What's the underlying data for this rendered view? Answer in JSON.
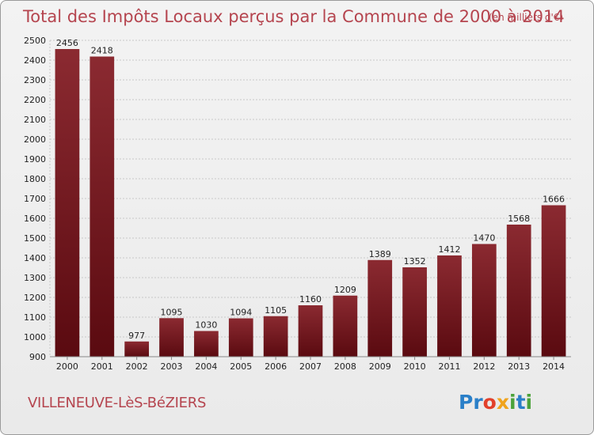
{
  "page": {
    "title": "Total des Impôts Locaux perçus par la Commune de 2000 à 2014",
    "unit": "(en milliers d'€)",
    "commune": "VILLENEUVE-LèS-BéZIERS",
    "logo": {
      "letters": [
        "P",
        "r",
        "o",
        "x",
        "i",
        "t",
        "i"
      ],
      "colors": [
        "#2a7fc8",
        "#2a7fc8",
        "#e2402b",
        "#f0a31c",
        "#4aa23a",
        "#2a7fc8",
        "#4aa23a"
      ]
    }
  },
  "chart_data": {
    "type": "bar",
    "title": "Total des Impôts Locaux perçus par la Commune de 2000 à 2014",
    "unit": "(en milliers d'€)",
    "categories": [
      "2000",
      "2001",
      "2002",
      "2003",
      "2004",
      "2005",
      "2006",
      "2007",
      "2008",
      "2009",
      "2010",
      "2011",
      "2012",
      "2013",
      "2014"
    ],
    "values": [
      2456,
      2418,
      977,
      1095,
      1030,
      1094,
      1105,
      1160,
      1209,
      1389,
      1352,
      1412,
      1470,
      1568,
      1666
    ],
    "ylim": [
      900,
      2500
    ],
    "yticks": [
      900,
      1000,
      1100,
      1200,
      1300,
      1400,
      1500,
      1600,
      1700,
      1800,
      1900,
      2000,
      2100,
      2200,
      2300,
      2400,
      2500
    ],
    "grid": true,
    "bar_color": "#7d1a22"
  }
}
